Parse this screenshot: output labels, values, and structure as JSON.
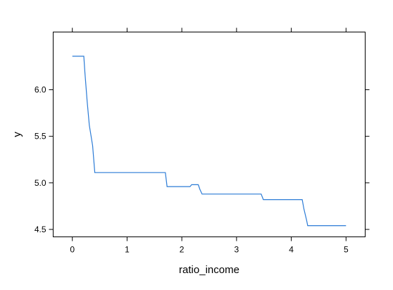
{
  "chart_data": {
    "type": "line",
    "xlabel": "ratio_income",
    "ylabel": "y",
    "xlim": [
      -0.35,
      5.35
    ],
    "ylim": [
      4.42,
      6.62
    ],
    "x_ticks": [
      0,
      1,
      2,
      3,
      4,
      5
    ],
    "y_ticks": [
      4.5,
      5.0,
      5.5,
      6.0
    ],
    "x_tick_labels": [
      "0",
      "1",
      "2",
      "3",
      "4",
      "5"
    ],
    "y_tick_labels": [
      "4.5",
      "5.0",
      "5.5",
      "6.0"
    ],
    "grid": false,
    "line_color": "#2b7bd6",
    "series": [
      {
        "x": [
          0.0,
          0.21,
          0.23,
          0.27,
          0.31,
          0.37,
          0.41,
          1.05,
          1.7,
          1.73,
          2.1,
          2.15,
          2.18,
          2.3,
          2.33,
          2.37,
          3.0,
          3.45,
          3.49,
          4.2,
          4.23,
          4.28,
          4.3,
          5.0
        ],
        "y": [
          6.36,
          6.36,
          6.18,
          5.88,
          5.62,
          5.4,
          5.11,
          5.11,
          5.11,
          4.96,
          4.96,
          4.96,
          4.98,
          4.98,
          4.93,
          4.88,
          4.88,
          4.88,
          4.82,
          4.82,
          4.72,
          4.6,
          4.54,
          4.54
        ]
      }
    ]
  }
}
